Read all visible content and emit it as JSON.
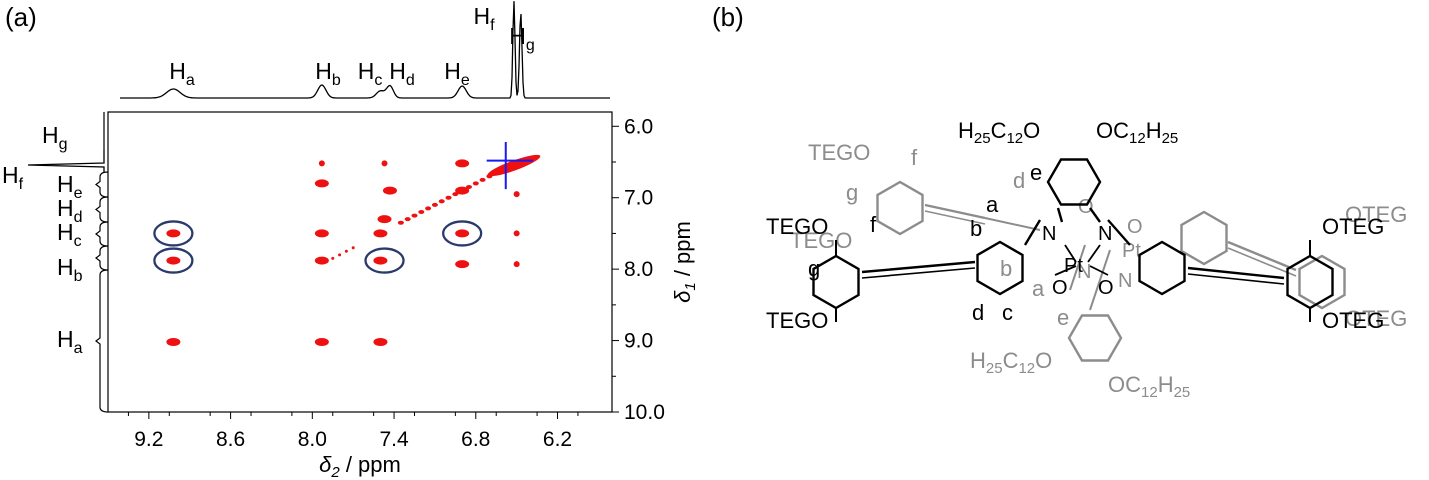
{
  "figure": {
    "panel_a_label": "(a)",
    "panel_b_label": "(b)"
  },
  "nmr": {
    "x_axis_label_symbol": "δ",
    "x_axis_label_sub": "2",
    "x_axis_label_unit": " / ppm",
    "y_axis_label_symbol": "δ",
    "y_axis_label_sub": "1",
    "y_axis_label_unit": " / ppm",
    "x_ticks": [
      "9.2",
      "8.6",
      "8.0",
      "7.4",
      "6.8",
      "6.2"
    ],
    "y_ticks": [
      "6.0",
      "7.0",
      "8.0",
      "9.0",
      "10.0"
    ],
    "top_peak_labels": [
      {
        "base": "H",
        "sub": "a"
      },
      {
        "base": "H",
        "sub": "b"
      },
      {
        "base": "H",
        "sub": "c"
      },
      {
        "base": "H",
        "sub": "d"
      },
      {
        "base": "H",
        "sub": "e"
      },
      {
        "base": "H",
        "sub": "f"
      },
      {
        "base": "H",
        "sub": "g"
      }
    ],
    "left_peak_labels": [
      {
        "base": "H",
        "sub": "g"
      },
      {
        "base": "H",
        "sub": "f"
      },
      {
        "base": "H",
        "sub": "e"
      },
      {
        "base": "H",
        "sub": "d"
      },
      {
        "base": "H",
        "sub": "c"
      },
      {
        "base": "H",
        "sub": "b"
      },
      {
        "base": "H",
        "sub": "a"
      }
    ],
    "colors": {
      "contour": "#ee1111",
      "negative": "#1a1aee",
      "circle": "#2a3a6a"
    }
  },
  "chart_data": {
    "type": "heatmap",
    "title": "",
    "xlabel": "δ2 / ppm",
    "ylabel": "δ1 / ppm",
    "xlim": [
      9.5,
      5.8
    ],
    "ylim": [
      10.0,
      5.8
    ],
    "x_reversed": true,
    "y_reversed": true,
    "peak_shifts_ppm": {
      "Ha": 9.02,
      "Hb": 7.93,
      "Hc": 7.5,
      "Hd": 7.43,
      "He": 6.9,
      "Hf": 6.52,
      "Hg": 6.47
    },
    "cross_peaks": [
      {
        "x": 9.02,
        "y": 7.5
      },
      {
        "x": 9.02,
        "y": 7.88
      },
      {
        "x": 9.02,
        "y": 9.02
      },
      {
        "x": 7.93,
        "y": 6.52
      },
      {
        "x": 7.93,
        "y": 6.8
      },
      {
        "x": 7.93,
        "y": 7.5
      },
      {
        "x": 7.93,
        "y": 7.88
      },
      {
        "x": 7.93,
        "y": 9.02
      },
      {
        "x": 7.47,
        "y": 6.52
      },
      {
        "x": 7.43,
        "y": 6.9
      },
      {
        "x": 7.47,
        "y": 7.3
      },
      {
        "x": 7.5,
        "y": 7.5
      },
      {
        "x": 7.5,
        "y": 7.88
      },
      {
        "x": 7.5,
        "y": 9.02
      },
      {
        "x": 6.9,
        "y": 6.9
      },
      {
        "x": 6.9,
        "y": 7.5
      },
      {
        "x": 6.9,
        "y": 6.52
      },
      {
        "x": 6.5,
        "y": 7.5
      },
      {
        "x": 6.5,
        "y": 7.93
      },
      {
        "x": 6.5,
        "y": 6.95
      },
      {
        "x": 6.9,
        "y": 7.93
      }
    ],
    "circled_cross_peaks": [
      {
        "x": 9.02,
        "y": 7.5
      },
      {
        "x": 9.02,
        "y": 7.88
      },
      {
        "x": 7.47,
        "y": 7.88
      },
      {
        "x": 6.9,
        "y": 7.5
      }
    ]
  },
  "structure": {
    "top_alkoxy_left": "H25C12O",
    "top_alkoxy_right": "OC12H25",
    "bottom_alkoxy_left": "H25C12O",
    "bottom_alkoxy_right": "OC12H25",
    "tego_labels_black": [
      "TEGO",
      "TEGO"
    ],
    "oteg_labels_black": [
      "OTEG",
      "OTEG"
    ],
    "tego_labels_grey": [
      "TEGO",
      "TEGO"
    ],
    "oteg_labels_grey": [
      "OTEG",
      "OTEG"
    ],
    "metal": "Pt",
    "atoms": {
      "N": "N",
      "O": "O"
    },
    "proton_letters_black": [
      "e",
      "a",
      "b",
      "f",
      "g",
      "d",
      "c"
    ],
    "proton_letters_grey": [
      "d",
      "f",
      "g",
      "b",
      "a",
      "e"
    ],
    "colors": {
      "front": "#000000",
      "back": "#8c8c8c"
    }
  }
}
